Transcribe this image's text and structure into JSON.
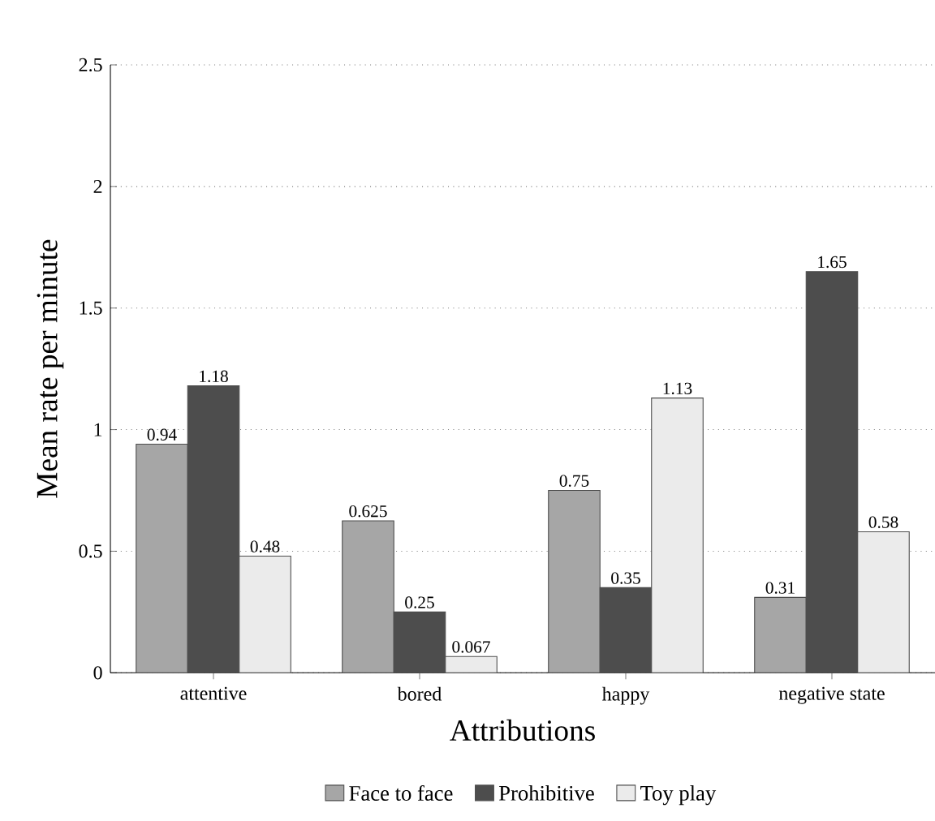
{
  "chart_data": {
    "type": "bar",
    "xlabel": "Attributions",
    "ylabel": "Mean rate per minute",
    "categories": [
      "attentive",
      "bored",
      "happy",
      "negative state"
    ],
    "series": [
      {
        "name": "Face to face",
        "color": "#a6a6a6",
        "values": [
          0.94,
          0.625,
          0.75,
          0.31
        ]
      },
      {
        "name": "Prohibitive",
        "color": "#4d4d4d",
        "values": [
          1.18,
          0.25,
          0.35,
          1.65
        ]
      },
      {
        "name": "Toy play",
        "color": "#ebebeb",
        "values": [
          0.48,
          0.067,
          1.13,
          0.58
        ]
      }
    ],
    "ylim": [
      0,
      2.5
    ],
    "yticks": [
      0,
      0.5,
      1,
      1.5,
      2,
      2.5
    ],
    "grid": "y",
    "legend": "bottom",
    "data_labels": true
  }
}
